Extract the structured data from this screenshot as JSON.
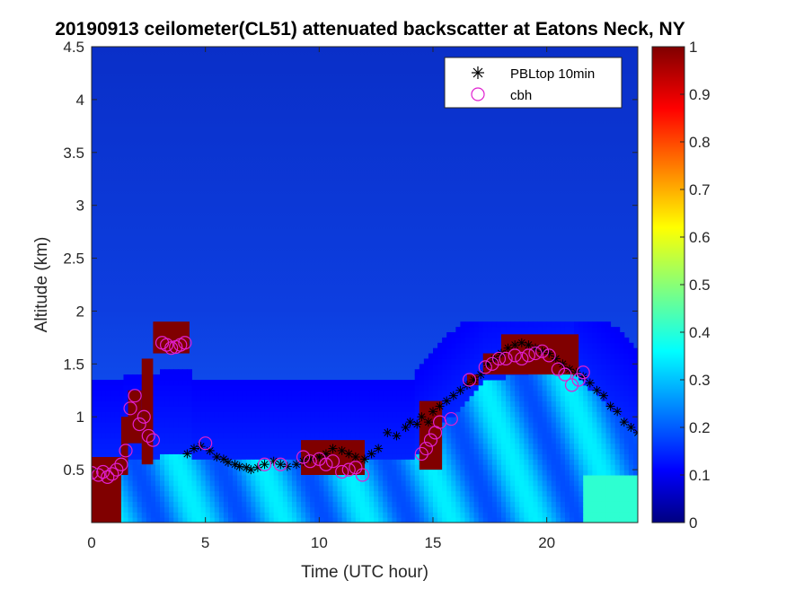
{
  "chart_data": {
    "type": "heatmap",
    "title": "20190913 ceilometer(CL51) attenuated backscatter at Eatons Neck, NY",
    "xlabel": "Time (UTC hour)",
    "ylabel": "Altitude (km)",
    "xlim": [
      0,
      24
    ],
    "ylim": [
      0,
      4.5
    ],
    "xticks": [
      0,
      5,
      10,
      15,
      20
    ],
    "yticks": [
      0.5,
      1,
      1.5,
      2,
      2.5,
      3,
      3.5,
      4,
      4.5
    ],
    "colorbar": {
      "colormap": "jet",
      "range": [
        0,
        1
      ],
      "ticks": [
        0,
        0.1,
        0.2,
        0.3,
        0.4,
        0.5,
        0.6,
        0.7,
        0.8,
        0.9,
        1
      ]
    },
    "legend": {
      "position": "top-right",
      "entries": [
        "PBLtop 10min",
        "cbh"
      ]
    },
    "series": [
      {
        "name": "PBLtop 10min",
        "marker": "asterisk",
        "color": "#000000",
        "x": [
          4.2,
          4.5,
          4.8,
          5.2,
          5.5,
          5.8,
          6.0,
          6.3,
          6.5,
          6.8,
          7.0,
          7.3,
          7.6,
          8.0,
          8.3,
          8.6,
          9.0,
          9.3,
          9.6,
          10.0,
          10.3,
          10.6,
          11.0,
          11.3,
          11.6,
          12.0,
          12.3,
          12.6,
          13.0,
          13.4,
          13.8,
          14.0,
          14.3,
          14.5,
          14.8,
          15.0,
          15.3,
          15.6,
          15.9,
          16.2,
          16.5,
          16.8,
          17.1,
          17.4,
          17.7,
          18.0,
          18.3,
          18.6,
          18.9,
          19.2,
          19.5,
          19.8,
          20.1,
          20.4,
          20.7,
          21.0,
          21.3,
          21.6,
          21.9,
          22.2,
          22.5,
          22.8,
          23.1,
          23.4,
          23.7,
          24.0
        ],
        "y": [
          0.65,
          0.7,
          0.72,
          0.68,
          0.62,
          0.6,
          0.57,
          0.55,
          0.53,
          0.52,
          0.5,
          0.52,
          0.55,
          0.58,
          0.55,
          0.53,
          0.55,
          0.58,
          0.6,
          0.62,
          0.65,
          0.7,
          0.68,
          0.65,
          0.62,
          0.6,
          0.65,
          0.7,
          0.85,
          0.82,
          0.9,
          0.95,
          0.93,
          1.0,
          0.95,
          1.05,
          1.1,
          1.15,
          1.2,
          1.25,
          1.3,
          1.35,
          1.4,
          1.5,
          1.55,
          1.6,
          1.65,
          1.68,
          1.7,
          1.68,
          1.65,
          1.62,
          1.6,
          1.55,
          1.5,
          1.45,
          1.42,
          1.38,
          1.32,
          1.25,
          1.2,
          1.1,
          1.05,
          0.95,
          0.9,
          0.85
        ]
      },
      {
        "name": "cbh",
        "marker": "circle",
        "color": "#e020d0",
        "x": [
          0.0,
          0.3,
          0.5,
          0.7,
          0.9,
          1.1,
          1.3,
          1.5,
          1.7,
          1.9,
          2.1,
          2.3,
          2.5,
          2.7,
          3.1,
          3.3,
          3.5,
          3.7,
          3.9,
          4.1,
          5.0,
          7.6,
          8.3,
          9.3,
          9.6,
          10.0,
          10.3,
          10.6,
          11.0,
          11.3,
          11.6,
          11.9,
          14.5,
          14.7,
          14.9,
          15.1,
          15.3,
          15.8,
          16.6,
          17.3,
          17.6,
          17.9,
          18.2,
          18.6,
          18.9,
          19.2,
          19.5,
          19.8,
          20.1,
          20.5,
          20.8,
          21.1,
          21.4,
          21.6
        ],
        "y": [
          0.47,
          0.45,
          0.48,
          0.43,
          0.46,
          0.5,
          0.55,
          0.68,
          1.08,
          1.2,
          0.93,
          1.0,
          0.82,
          0.78,
          1.7,
          1.68,
          1.65,
          1.66,
          1.68,
          1.7,
          0.75,
          0.55,
          0.55,
          0.62,
          0.58,
          0.6,
          0.55,
          0.58,
          0.48,
          0.5,
          0.52,
          0.45,
          0.65,
          0.7,
          0.78,
          0.85,
          0.95,
          0.98,
          1.35,
          1.47,
          1.5,
          1.55,
          1.55,
          1.58,
          1.55,
          1.58,
          1.6,
          1.62,
          1.58,
          1.45,
          1.4,
          1.3,
          1.35,
          1.42
        ]
      }
    ]
  }
}
